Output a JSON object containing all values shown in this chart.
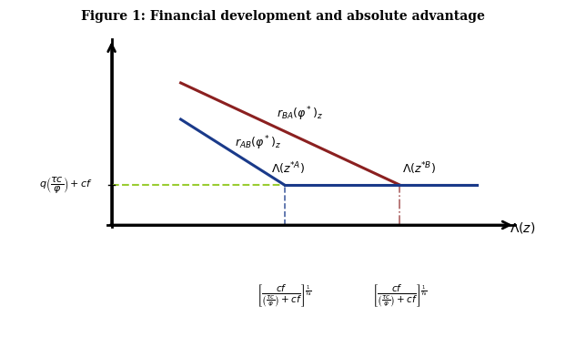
{
  "title": "Figure 1: Financial development and absolute advantage",
  "title_fontsize": 10,
  "fig_width": 6.22,
  "fig_height": 3.7,
  "dpi": 100,
  "background_color": "#ffffff",
  "plot_bg_color": "#ffffff",
  "x_axis_label": "$\\Lambda(z)$",
  "line_BA_color": "#8B2020",
  "line_AB_color": "#1A3A8A",
  "dashed_horiz_color": "#9ACD32",
  "dashed_vert_color": "#6688BB",
  "xA": 4.5,
  "xB": 7.5,
  "y_threshold": 2.2,
  "BA_x0": 1.8,
  "BA_y0": 7.8,
  "AB_x0": 1.8,
  "AB_y0": 5.8,
  "x_end_flat": 9.5,
  "label_rBA": "$r_{BA}(\\varphi^*)_z$",
  "label_rAB": "$r_{AB}(\\varphi^*)_z$",
  "label_zA": "$\\Lambda(z^{*A})$",
  "label_zB": "$\\Lambda(z^{*B})$",
  "label_y": "$q\\left(\\dfrac{\\tau c}{\\varphi}\\right)+cf$",
  "label_xA": "$\\left[\\dfrac{cf}{\\left(\\frac{\\tau c}{\\varphi}\\right)+cf}\\right]^{\\frac{1}{\\gamma_A}}$",
  "label_xB": "$\\left[\\dfrac{cf}{\\left(\\frac{\\tau c}{\\varphi}\\right)+cf}\\right]^{\\frac{1}{\\gamma_B}}$",
  "xlim": [
    -0.4,
    10.8
  ],
  "ylim": [
    -0.6,
    10.5
  ]
}
